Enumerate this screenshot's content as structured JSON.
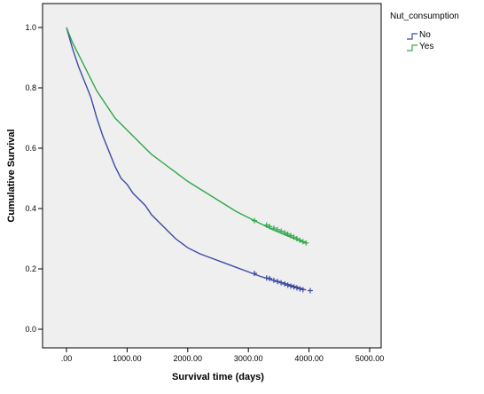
{
  "chart_data": {
    "type": "line",
    "title": "",
    "xlabel": "Survival time (days)",
    "ylabel": "Cumulative Survival",
    "xlim": [
      0,
      5000
    ],
    "ylim": [
      0,
      1.0
    ],
    "x_ticks": [
      0,
      1000,
      2000,
      3000,
      4000,
      5000
    ],
    "x_tick_labels": [
      ".00",
      "1000.00",
      "2000.00",
      "3000.00",
      "4000.00",
      "5000.00"
    ],
    "y_ticks": [
      0,
      0.2,
      0.4,
      0.6,
      0.8,
      1.0
    ],
    "y_tick_labels": [
      "0.0",
      "0.2",
      "0.4",
      "0.6",
      "0.8",
      "1.0"
    ],
    "grid": false,
    "legend": {
      "title": "Nut_consumption",
      "position": "top-right"
    },
    "series": [
      {
        "name": "No",
        "color": "#3b4aa3",
        "x": [
          0,
          100,
          200,
          300,
          400,
          500,
          600,
          700,
          800,
          900,
          1000,
          1100,
          1200,
          1300,
          1400,
          1500,
          1600,
          1700,
          1800,
          1900,
          2000,
          2200,
          2400,
          2600,
          2800,
          3000,
          3200,
          3400,
          3600,
          3800,
          3950
        ],
        "values": [
          1.0,
          0.93,
          0.87,
          0.82,
          0.77,
          0.7,
          0.64,
          0.59,
          0.54,
          0.5,
          0.48,
          0.45,
          0.43,
          0.41,
          0.38,
          0.36,
          0.34,
          0.32,
          0.3,
          0.285,
          0.27,
          0.25,
          0.235,
          0.22,
          0.205,
          0.19,
          0.175,
          0.163,
          0.152,
          0.14,
          0.13
        ],
        "censor_x": [
          3100,
          3300,
          3350,
          3420,
          3480,
          3540,
          3600,
          3650,
          3700,
          3750,
          3800,
          3850,
          3900,
          4020
        ],
        "censor_y": [
          0.185,
          0.17,
          0.168,
          0.162,
          0.158,
          0.154,
          0.15,
          0.146,
          0.143,
          0.14,
          0.137,
          0.134,
          0.131,
          0.128
        ]
      },
      {
        "name": "Yes",
        "color": "#2ea84a",
        "x": [
          0,
          100,
          200,
          300,
          400,
          500,
          600,
          700,
          800,
          900,
          1000,
          1200,
          1400,
          1600,
          1800,
          2000,
          2200,
          2400,
          2600,
          2800,
          3000,
          3200,
          3400,
          3600,
          3800,
          3950
        ],
        "values": [
          1.0,
          0.95,
          0.91,
          0.87,
          0.83,
          0.79,
          0.76,
          0.73,
          0.7,
          0.68,
          0.66,
          0.62,
          0.58,
          0.55,
          0.52,
          0.49,
          0.465,
          0.44,
          0.415,
          0.39,
          0.37,
          0.35,
          0.33,
          0.313,
          0.297,
          0.285
        ],
        "censor_x": [
          3100,
          3300,
          3350,
          3420,
          3480,
          3540,
          3600,
          3650,
          3700,
          3750,
          3800,
          3850,
          3900,
          3950
        ],
        "censor_y": [
          0.36,
          0.345,
          0.34,
          0.335,
          0.33,
          0.325,
          0.32,
          0.315,
          0.31,
          0.305,
          0.3,
          0.295,
          0.29,
          0.286
        ]
      }
    ]
  }
}
